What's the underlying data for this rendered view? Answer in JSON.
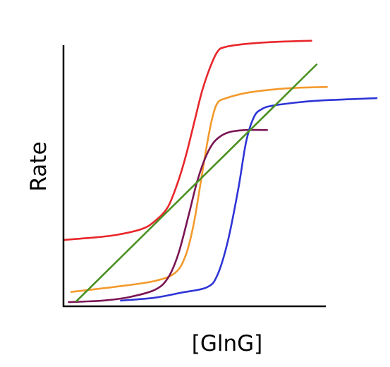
{
  "chart_data": {
    "type": "line",
    "title": "",
    "xlabel": "[GlnG]",
    "ylabel": "Rate",
    "xlim": [
      0,
      100
    ],
    "ylim": [
      0,
      100
    ],
    "grid": false,
    "legend": "none",
    "ticks": "none",
    "series": [
      {
        "color": "#e8262a",
        "points": [
          [
            0,
            25.4
          ],
          [
            10,
            26.2
          ],
          [
            20,
            27.3
          ],
          [
            30,
            29.6
          ],
          [
            35,
            32.6
          ],
          [
            40,
            38
          ],
          [
            44,
            48
          ],
          [
            47,
            58
          ],
          [
            50,
            70
          ],
          [
            53,
            82
          ],
          [
            56,
            91
          ],
          [
            59,
            97.5
          ],
          [
            62,
            99.3
          ],
          [
            70,
            100.5
          ],
          [
            80,
            101.2
          ],
          [
            95,
            101.7
          ]
        ]
      },
      {
        "color": "#f39a2c",
        "points": [
          [
            3,
            5.5
          ],
          [
            20,
            7.5
          ],
          [
            35,
            9.7
          ],
          [
            43,
            13
          ],
          [
            47,
            20
          ],
          [
            50,
            32
          ],
          [
            53,
            50
          ],
          [
            55,
            62
          ],
          [
            57,
            72
          ],
          [
            59,
            77.8
          ],
          [
            62,
            79.6
          ],
          [
            70,
            81.7
          ],
          [
            80,
            83
          ],
          [
            90,
            83.7
          ],
          [
            101,
            84
          ]
        ]
      },
      {
        "color": "#7a1554",
        "points": [
          [
            2,
            1.6
          ],
          [
            15,
            2.2
          ],
          [
            25,
            3.5
          ],
          [
            35,
            6.3
          ],
          [
            40,
            10.8
          ],
          [
            44,
            20
          ],
          [
            48,
            35
          ],
          [
            51,
            47
          ],
          [
            54,
            56
          ],
          [
            57,
            62
          ],
          [
            60,
            65
          ],
          [
            64,
            66.8
          ],
          [
            70,
            67.5
          ],
          [
            78,
            67.5
          ]
        ]
      },
      {
        "color": "#2e34d6",
        "points": [
          [
            22,
            2.2
          ],
          [
            35,
            3.3
          ],
          [
            45,
            5.2
          ],
          [
            55,
            7.3
          ],
          [
            59,
            12
          ],
          [
            63,
            25
          ],
          [
            67,
            45
          ],
          [
            70,
            63
          ],
          [
            73,
            72.5
          ],
          [
            76,
            75.5
          ],
          [
            80,
            76.8
          ],
          [
            90,
            78.1
          ],
          [
            100,
            78.9
          ],
          [
            120,
            79.7
          ]
        ]
      },
      {
        "color": "#4a9122",
        "points": [
          [
            5,
            2
          ],
          [
            97,
            92.6
          ]
        ]
      }
    ]
  }
}
